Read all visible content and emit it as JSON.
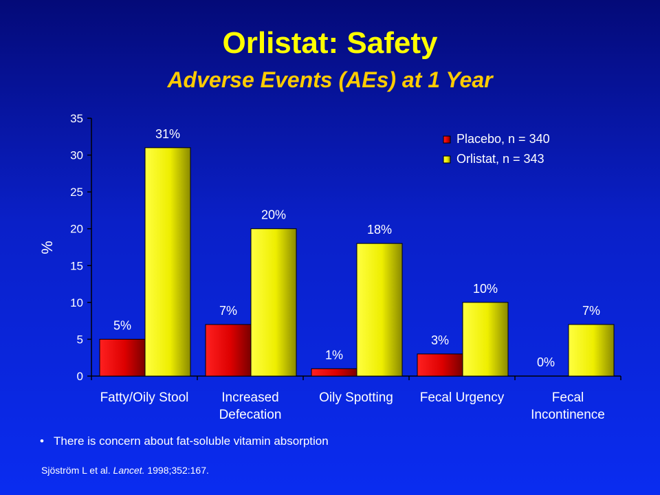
{
  "slide": {
    "title": "Orlistat: Safety",
    "subtitle": "Adverse Events (AEs) at 1 Year",
    "bullet": "There is concern about fat-soluble vitamin absorption",
    "citation": {
      "authors": "Sjöström L et al.",
      "journal": "Lancet.",
      "details": "1998;352:167."
    }
  },
  "chart_data": {
    "type": "bar",
    "ylabel": "%",
    "ylim": [
      0,
      35
    ],
    "yticks": [
      0,
      5,
      10,
      15,
      20,
      25,
      30,
      35
    ],
    "categories": [
      [
        "Fatty/Oily Stool"
      ],
      [
        "Increased",
        "Defecation"
      ],
      [
        "Oily Spotting"
      ],
      [
        "Fecal Urgency"
      ],
      [
        "Fecal",
        "Incontinence"
      ]
    ],
    "series": [
      {
        "name": "Placebo, n = 340",
        "color": "#dd0000",
        "values": [
          5,
          7,
          1,
          3,
          0
        ],
        "labels": [
          "5%",
          "7%",
          "1%",
          "3%",
          "0%"
        ]
      },
      {
        "name": "Orlistat, n = 343",
        "color": "#eeee00",
        "values": [
          31,
          20,
          18,
          10,
          7
        ],
        "labels": [
          "31%",
          "20%",
          "18%",
          "10%",
          "7%"
        ]
      }
    ],
    "legend": "top-right",
    "grid": false
  },
  "colors": {
    "title": "#ffff00",
    "subtitle": "#ffcc00",
    "text": "#ffffff",
    "axis": "#000000"
  }
}
